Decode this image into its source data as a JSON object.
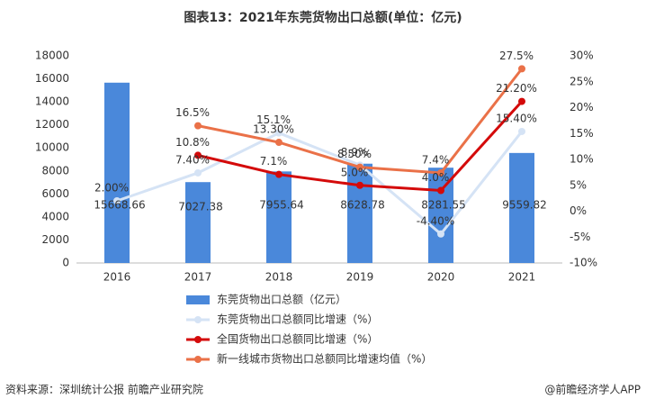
{
  "chart_data": {
    "type": "bar",
    "title": "图表13：2021年东莞货物出口总额(单位：亿元)",
    "categories": [
      "2016",
      "2017",
      "2018",
      "2019",
      "2020",
      "2021"
    ],
    "ylim": [
      0,
      18000
    ],
    "yticks": [
      0,
      2000,
      4000,
      6000,
      8000,
      10000,
      12000,
      14000,
      16000,
      18000
    ],
    "y2lim": [
      -10,
      30
    ],
    "y2ticks": [
      {
        "value": -10,
        "label": "-10%"
      },
      {
        "value": -5,
        "label": "-5%"
      },
      {
        "value": 0,
        "label": "0%"
      },
      {
        "value": 5,
        "label": "5%"
      },
      {
        "value": 10,
        "label": "10%"
      },
      {
        "value": 15,
        "label": "15%"
      },
      {
        "value": 20,
        "label": "20%"
      },
      {
        "value": 25,
        "label": "25%"
      },
      {
        "value": 30,
        "label": "30%"
      }
    ],
    "series": [
      {
        "name": "东莞货物出口总额（亿元）",
        "type": "bar",
        "color": "#4a88da",
        "values": [
          15668.66,
          7027.38,
          7955.64,
          8628.78,
          8281.55,
          9559.82
        ]
      },
      {
        "name": "东莞货物出口总额同比增速（%）",
        "type": "line",
        "axis": "y2",
        "color": "#d5e3f5",
        "values": [
          2.0,
          7.4,
          15.1,
          8.9,
          -4.4,
          15.4
        ],
        "value_labels": [
          "2.00%",
          "7.40%",
          "15.1%",
          "8.9%",
          "-4.40%",
          "15.40%"
        ]
      },
      {
        "name": "全国货物出口总额同比增速（%）",
        "type": "line",
        "axis": "y2",
        "color": "#d40a0a",
        "values": [
          null,
          10.8,
          7.1,
          5.0,
          4.0,
          21.2
        ],
        "value_labels": [
          null,
          "10.8%",
          "7.1%",
          "5.0%",
          "4.0%",
          "21.20%"
        ]
      },
      {
        "name": "新一线城市货物出口总额同比增速均值（%）",
        "type": "line",
        "axis": "y2",
        "color": "#ea7148",
        "values": [
          null,
          16.5,
          13.3,
          8.5,
          7.4,
          27.5
        ],
        "value_labels": [
          null,
          "16.5%",
          "13.30%",
          "8.50%",
          "7.4%",
          "27.5%"
        ]
      }
    ]
  },
  "footer": {
    "source": "资料来源：深圳统计公报 前瞻产业研究院",
    "brand": "@前瞻经济学人APP"
  }
}
